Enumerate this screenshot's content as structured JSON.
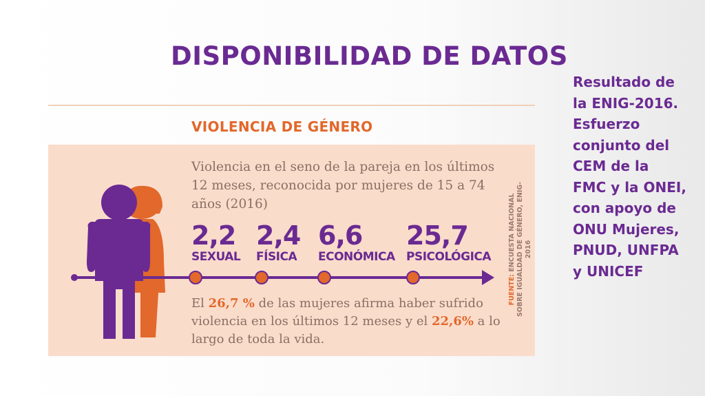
{
  "title": "DISPONIBILIDAD DE DATOS",
  "section_title": "VIOLENCIA DE GÉNERO",
  "description": "Violencia en el seno de la pareja en los últimos 12 meses, reconocida por mujeres de 15 a 74 años (2016)",
  "stats": [
    {
      "value": "2,2",
      "label": "SEXUAL"
    },
    {
      "value": "2,4",
      "label": "FÍSICA"
    },
    {
      "value": "6,6",
      "label": "ECONÓMICA"
    },
    {
      "value": "25,7",
      "label": "PSICOLÓGICA"
    }
  ],
  "summary": {
    "part1": "El ",
    "pct1": "26,7 %",
    "part2": " de las mujeres afirma haber sufrido violencia en los últimos 12 meses y el ",
    "pct2": "22,6%",
    "part3": " a lo largo de toda la vida."
  },
  "source": {
    "label": "FUENTE:",
    "text": "ENCUESTA NACIONAL SOBRE IGUALDAD DE GÉNERO, ENIG-2016"
  },
  "side_note": "Resultado de la ENIG-2016. Esfuerzo conjunto del CEM de la FMC y la ONEI, con apoyo de ONU Mujeres, PNUD, UNFPA y UNICEF",
  "colors": {
    "purple": "#6a2a92",
    "orange": "#e2682b",
    "panel": "#fadccb",
    "body_text": "#8c6e63"
  },
  "icons": {
    "figures": "man-woman-figures-icon",
    "arrow": "timeline-arrow-icon"
  }
}
